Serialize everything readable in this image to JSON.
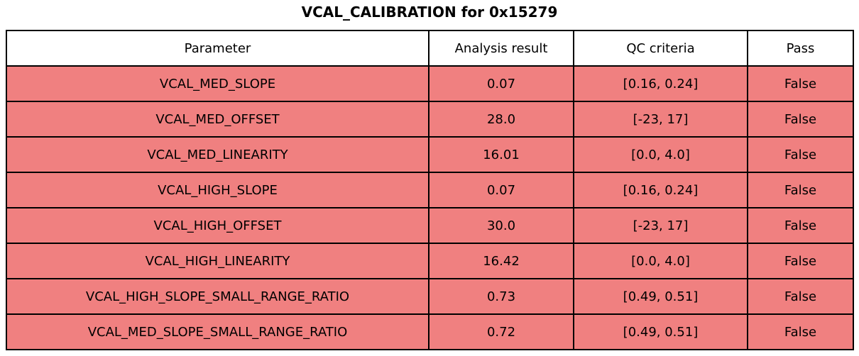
{
  "title": "VCAL_CALIBRATION for 0x15279",
  "colors": {
    "fail_row_bg": "#F08080",
    "header_bg": "#FFFFFF",
    "border": "#000000",
    "text": "#000000"
  },
  "table": {
    "columns": [
      "Parameter",
      "Analysis result",
      "QC criteria",
      "Pass"
    ],
    "rows": [
      {
        "parameter": "VCAL_MED_SLOPE",
        "analysis_result": "0.07",
        "qc_criteria": "[0.16, 0.24]",
        "pass": "False"
      },
      {
        "parameter": "VCAL_MED_OFFSET",
        "analysis_result": "28.0",
        "qc_criteria": "[-23, 17]",
        "pass": "False"
      },
      {
        "parameter": "VCAL_MED_LINEARITY",
        "analysis_result": "16.01",
        "qc_criteria": "[0.0, 4.0]",
        "pass": "False"
      },
      {
        "parameter": "VCAL_HIGH_SLOPE",
        "analysis_result": "0.07",
        "qc_criteria": "[0.16, 0.24]",
        "pass": "False"
      },
      {
        "parameter": "VCAL_HIGH_OFFSET",
        "analysis_result": "30.0",
        "qc_criteria": "[-23, 17]",
        "pass": "False"
      },
      {
        "parameter": "VCAL_HIGH_LINEARITY",
        "analysis_result": "16.42",
        "qc_criteria": "[0.0, 4.0]",
        "pass": "False"
      },
      {
        "parameter": "VCAL_HIGH_SLOPE_SMALL_RANGE_RATIO",
        "analysis_result": "0.73",
        "qc_criteria": "[0.49, 0.51]",
        "pass": "False"
      },
      {
        "parameter": "VCAL_MED_SLOPE_SMALL_RANGE_RATIO",
        "analysis_result": "0.72",
        "qc_criteria": "[0.49, 0.51]",
        "pass": "False"
      }
    ]
  },
  "chart_data": {
    "type": "table",
    "title": "VCAL_CALIBRATION for 0x15279",
    "columns": [
      "Parameter",
      "Analysis result",
      "QC criteria",
      "Pass"
    ],
    "rows": [
      [
        "VCAL_MED_SLOPE",
        "0.07",
        "[0.16, 0.24]",
        "False"
      ],
      [
        "VCAL_MED_OFFSET",
        "28.0",
        "[-23, 17]",
        "False"
      ],
      [
        "VCAL_MED_LINEARITY",
        "16.01",
        "[0.0, 4.0]",
        "False"
      ],
      [
        "VCAL_HIGH_SLOPE",
        "0.07",
        "[0.16, 0.24]",
        "False"
      ],
      [
        "VCAL_HIGH_OFFSET",
        "30.0",
        "[-23, 17]",
        "False"
      ],
      [
        "VCAL_HIGH_LINEARITY",
        "16.42",
        "[0.0, 4.0]",
        "False"
      ],
      [
        "VCAL_HIGH_SLOPE_SMALL_RANGE_RATIO",
        "0.73",
        "[0.49, 0.51]",
        "False"
      ],
      [
        "VCAL_MED_SLOPE_SMALL_RANGE_RATIO",
        "0.72",
        "[0.49, 0.51]",
        "False"
      ]
    ],
    "layout_hints": {
      "header_background": "#FFFFFF",
      "fail_row_background": "#F08080",
      "all_rows_failed": true
    }
  }
}
